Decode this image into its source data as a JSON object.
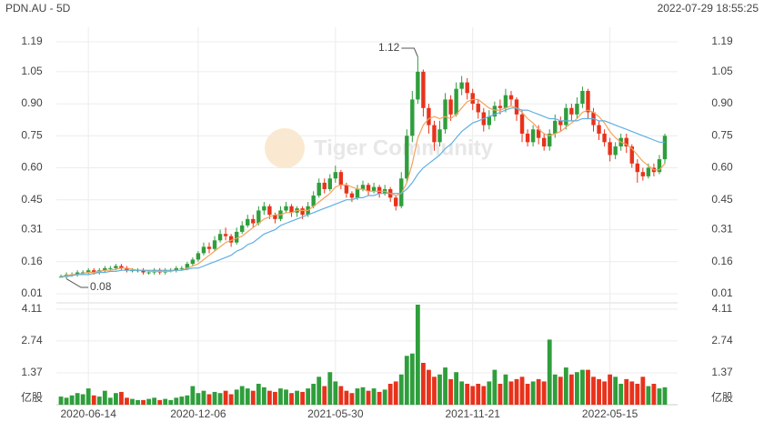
{
  "header": {
    "title": "PDN.AU - 5D",
    "timestamp": "2022-07-29 18:55:25",
    "watermark": "Tiger Community"
  },
  "chart_data": {
    "type": "candlestick",
    "categories": [
      null,
      null,
      null,
      null,
      null,
      "2020-06-14",
      null,
      null,
      null,
      null,
      null,
      null,
      null,
      null,
      null,
      null,
      null,
      null,
      null,
      null,
      null,
      null,
      null,
      null,
      null,
      "2020-12-06",
      null,
      null,
      null,
      null,
      null,
      null,
      null,
      null,
      null,
      null,
      null,
      null,
      null,
      null,
      null,
      null,
      null,
      null,
      null,
      null,
      null,
      null,
      null,
      null,
      "2021-05-30",
      null,
      null,
      null,
      null,
      null,
      null,
      null,
      null,
      null,
      null,
      null,
      null,
      null,
      null,
      null,
      null,
      null,
      null,
      null,
      null,
      null,
      null,
      null,
      null,
      "2021-11-21",
      null,
      null,
      null,
      null,
      null,
      null,
      null,
      null,
      null,
      null,
      null,
      null,
      null,
      null,
      null,
      null,
      null,
      null,
      null,
      null,
      null,
      null,
      null,
      null,
      "2022-05-15",
      null,
      null,
      null,
      null,
      null,
      null,
      null,
      null,
      null,
      null
    ],
    "open": [
      0.09,
      0.09,
      0.1,
      0.1,
      0.11,
      0.11,
      0.12,
      0.11,
      0.12,
      0.13,
      0.13,
      0.14,
      0.13,
      0.12,
      0.12,
      0.12,
      0.11,
      0.11,
      0.12,
      0.11,
      0.12,
      0.12,
      0.13,
      0.13,
      0.15,
      0.17,
      0.2,
      0.23,
      0.22,
      0.26,
      0.29,
      0.28,
      0.25,
      0.3,
      0.33,
      0.36,
      0.34,
      0.4,
      0.42,
      0.38,
      0.36,
      0.4,
      0.42,
      0.39,
      0.41,
      0.38,
      0.42,
      0.47,
      0.53,
      0.5,
      0.55,
      0.58,
      0.52,
      0.48,
      0.46,
      0.5,
      0.52,
      0.49,
      0.51,
      0.48,
      0.5,
      0.46,
      0.42,
      0.55,
      0.75,
      0.92,
      1.05,
      0.88,
      0.8,
      0.72,
      0.78,
      0.92,
      0.85,
      0.97,
      1.0,
      0.95,
      0.9,
      0.86,
      0.8,
      0.84,
      0.89,
      0.88,
      0.94,
      0.92,
      0.85,
      0.76,
      0.72,
      0.78,
      0.74,
      0.7,
      0.76,
      0.82,
      0.8,
      0.88,
      0.85,
      0.9,
      0.96,
      0.86,
      0.8,
      0.76,
      0.72,
      0.66,
      0.7,
      0.74,
      0.7,
      0.62,
      0.58,
      0.56,
      0.6,
      0.58,
      0.64
    ],
    "high": [
      0.1,
      0.11,
      0.11,
      0.12,
      0.12,
      0.13,
      0.13,
      0.13,
      0.14,
      0.14,
      0.15,
      0.15,
      0.14,
      0.13,
      0.13,
      0.13,
      0.12,
      0.13,
      0.13,
      0.13,
      0.13,
      0.14,
      0.14,
      0.16,
      0.18,
      0.21,
      0.25,
      0.25,
      0.28,
      0.31,
      0.32,
      0.29,
      0.32,
      0.35,
      0.38,
      0.38,
      0.42,
      0.44,
      0.43,
      0.39,
      0.42,
      0.44,
      0.43,
      0.42,
      0.42,
      0.44,
      0.49,
      0.55,
      0.55,
      0.57,
      0.61,
      0.59,
      0.53,
      0.49,
      0.52,
      0.54,
      0.53,
      0.53,
      0.52,
      0.52,
      0.51,
      0.47,
      0.58,
      0.78,
      0.96,
      1.12,
      1.06,
      0.9,
      0.82,
      0.82,
      0.95,
      0.94,
      1.0,
      1.03,
      1.02,
      0.97,
      0.92,
      0.88,
      0.87,
      0.91,
      0.92,
      0.97,
      0.96,
      0.93,
      0.87,
      0.78,
      0.8,
      0.8,
      0.76,
      0.78,
      0.85,
      0.84,
      0.9,
      0.9,
      0.93,
      0.98,
      0.97,
      0.88,
      0.82,
      0.78,
      0.74,
      0.72,
      0.76,
      0.76,
      0.71,
      0.64,
      0.6,
      0.62,
      0.62,
      0.66,
      0.76
    ],
    "low": [
      0.09,
      0.08,
      0.09,
      0.09,
      0.1,
      0.1,
      0.1,
      0.1,
      0.11,
      0.12,
      0.12,
      0.12,
      0.11,
      0.11,
      0.11,
      0.1,
      0.1,
      0.1,
      0.1,
      0.1,
      0.11,
      0.11,
      0.12,
      0.12,
      0.14,
      0.16,
      0.19,
      0.2,
      0.21,
      0.25,
      0.26,
      0.23,
      0.24,
      0.29,
      0.32,
      0.32,
      0.33,
      0.38,
      0.36,
      0.34,
      0.35,
      0.39,
      0.37,
      0.37,
      0.36,
      0.37,
      0.41,
      0.46,
      0.48,
      0.49,
      0.53,
      0.5,
      0.46,
      0.44,
      0.45,
      0.49,
      0.47,
      0.48,
      0.46,
      0.47,
      0.44,
      0.4,
      0.41,
      0.53,
      0.72,
      0.9,
      0.84,
      0.76,
      0.68,
      0.7,
      0.76,
      0.82,
      0.84,
      0.94,
      0.92,
      0.87,
      0.83,
      0.77,
      0.78,
      0.82,
      0.85,
      0.86,
      0.89,
      0.82,
      0.72,
      0.7,
      0.7,
      0.71,
      0.68,
      0.68,
      0.74,
      0.77,
      0.78,
      0.82,
      0.83,
      0.88,
      0.83,
      0.77,
      0.73,
      0.7,
      0.63,
      0.64,
      0.68,
      0.67,
      0.6,
      0.53,
      0.54,
      0.55,
      0.56,
      0.57,
      0.62
    ],
    "close": [
      0.09,
      0.1,
      0.1,
      0.11,
      0.11,
      0.12,
      0.11,
      0.12,
      0.13,
      0.13,
      0.14,
      0.13,
      0.12,
      0.12,
      0.12,
      0.11,
      0.11,
      0.12,
      0.11,
      0.12,
      0.12,
      0.13,
      0.13,
      0.15,
      0.17,
      0.2,
      0.23,
      0.22,
      0.26,
      0.29,
      0.28,
      0.25,
      0.3,
      0.33,
      0.36,
      0.34,
      0.4,
      0.42,
      0.38,
      0.36,
      0.4,
      0.42,
      0.39,
      0.41,
      0.38,
      0.42,
      0.47,
      0.53,
      0.5,
      0.55,
      0.58,
      0.52,
      0.48,
      0.46,
      0.5,
      0.52,
      0.49,
      0.51,
      0.48,
      0.5,
      0.46,
      0.42,
      0.55,
      0.75,
      0.92,
      1.05,
      0.88,
      0.8,
      0.72,
      0.78,
      0.92,
      0.85,
      0.97,
      1.0,
      0.95,
      0.9,
      0.86,
      0.8,
      0.84,
      0.89,
      0.88,
      0.94,
      0.92,
      0.85,
      0.76,
      0.72,
      0.78,
      0.74,
      0.7,
      0.76,
      0.82,
      0.8,
      0.88,
      0.85,
      0.9,
      0.96,
      0.86,
      0.8,
      0.76,
      0.72,
      0.66,
      0.7,
      0.74,
      0.7,
      0.62,
      0.58,
      0.56,
      0.6,
      0.58,
      0.64,
      0.75
    ],
    "volume": [
      0.35,
      0.3,
      0.4,
      0.5,
      0.45,
      0.7,
      0.4,
      0.35,
      0.6,
      0.3,
      0.5,
      0.55,
      0.3,
      0.25,
      0.2,
      0.2,
      0.25,
      0.3,
      0.2,
      0.25,
      0.2,
      0.3,
      0.35,
      0.4,
      0.8,
      0.5,
      0.6,
      0.45,
      0.55,
      0.5,
      0.6,
      0.45,
      0.65,
      0.8,
      0.7,
      0.6,
      0.9,
      0.75,
      0.6,
      0.55,
      0.7,
      0.65,
      0.5,
      0.6,
      0.55,
      0.7,
      0.9,
      1.2,
      0.8,
      1.4,
      1.0,
      0.8,
      0.6,
      0.5,
      0.7,
      0.75,
      0.6,
      0.7,
      0.55,
      0.65,
      0.9,
      1.0,
      1.3,
      2.1,
      2.2,
      4.3,
      1.8,
      1.5,
      1.2,
      1.3,
      1.6,
      1.1,
      1.4,
      1.0,
      0.9,
      0.8,
      0.9,
      0.8,
      1.0,
      1.5,
      0.9,
      1.3,
      1.0,
      1.1,
      1.2,
      0.9,
      1.0,
      1.1,
      1.0,
      2.8,
      1.3,
      1.2,
      1.6,
      1.3,
      1.4,
      1.5,
      1.5,
      1.2,
      1.1,
      1.0,
      1.3,
      1.2,
      0.9,
      1.1,
      1.0,
      0.9,
      1.2,
      0.8,
      0.9,
      0.7,
      0.75
    ],
    "ma_lines": [
      {
        "color": "#f4a25c",
        "values": [
          0.09,
          0.095,
          0.1,
          0.1,
          0.105,
          0.11,
          0.11,
          0.115,
          0.12,
          0.12,
          0.125,
          0.13,
          0.13,
          0.125,
          0.12,
          0.12,
          0.115,
          0.115,
          0.115,
          0.115,
          0.115,
          0.12,
          0.12,
          0.13,
          0.14,
          0.15,
          0.17,
          0.19,
          0.21,
          0.23,
          0.25,
          0.26,
          0.27,
          0.28,
          0.3,
          0.32,
          0.34,
          0.36,
          0.37,
          0.38,
          0.38,
          0.39,
          0.39,
          0.4,
          0.4,
          0.4,
          0.42,
          0.44,
          0.46,
          0.48,
          0.51,
          0.52,
          0.52,
          0.51,
          0.5,
          0.5,
          0.49,
          0.49,
          0.49,
          0.49,
          0.48,
          0.47,
          0.48,
          0.53,
          0.62,
          0.74,
          0.8,
          0.83,
          0.84,
          0.83,
          0.84,
          0.83,
          0.85,
          0.88,
          0.91,
          0.92,
          0.92,
          0.9,
          0.88,
          0.87,
          0.87,
          0.88,
          0.89,
          0.88,
          0.86,
          0.83,
          0.81,
          0.78,
          0.76,
          0.75,
          0.76,
          0.77,
          0.79,
          0.81,
          0.83,
          0.86,
          0.87,
          0.86,
          0.84,
          0.81,
          0.77,
          0.74,
          0.72,
          0.71,
          0.69,
          0.66,
          0.63,
          0.61,
          0.59,
          0.59,
          0.62
        ]
      },
      {
        "color": "#5fb0e3",
        "values": [
          0.09,
          0.09,
          0.095,
          0.1,
          0.1,
          0.1,
          0.105,
          0.11,
          0.11,
          0.115,
          0.115,
          0.12,
          0.12,
          0.12,
          0.12,
          0.12,
          0.12,
          0.12,
          0.12,
          0.12,
          0.12,
          0.12,
          0.12,
          0.125,
          0.13,
          0.13,
          0.14,
          0.15,
          0.16,
          0.17,
          0.18,
          0.19,
          0.21,
          0.22,
          0.24,
          0.25,
          0.27,
          0.29,
          0.3,
          0.31,
          0.33,
          0.34,
          0.35,
          0.36,
          0.37,
          0.38,
          0.39,
          0.4,
          0.41,
          0.42,
          0.43,
          0.44,
          0.45,
          0.45,
          0.46,
          0.46,
          0.47,
          0.47,
          0.48,
          0.48,
          0.48,
          0.48,
          0.48,
          0.5,
          0.53,
          0.57,
          0.6,
          0.62,
          0.64,
          0.66,
          0.69,
          0.71,
          0.74,
          0.77,
          0.79,
          0.81,
          0.82,
          0.83,
          0.84,
          0.85,
          0.86,
          0.87,
          0.88,
          0.88,
          0.87,
          0.87,
          0.86,
          0.85,
          0.84,
          0.83,
          0.83,
          0.82,
          0.82,
          0.82,
          0.82,
          0.83,
          0.83,
          0.83,
          0.82,
          0.82,
          0.81,
          0.8,
          0.79,
          0.78,
          0.77,
          0.76,
          0.75,
          0.74,
          0.73,
          0.72,
          0.72
        ]
      }
    ],
    "up_color": "#2f9e3c",
    "down_color": "#e8321b",
    "ylim": [
      0.01,
      1.19
    ],
    "yticks": [
      0.01,
      0.16,
      0.31,
      0.45,
      {
        "value": 0.6,
        "label": "0.60"
      },
      0.75,
      {
        "value": 0.9,
        "label": "0.90"
      },
      1.05,
      1.19
    ],
    "volume_lim": [
      0,
      4.3
    ],
    "volume_ticks": [
      1.37,
      2.74,
      4.11
    ],
    "volume_unit": "亿股",
    "grid": true
  }
}
